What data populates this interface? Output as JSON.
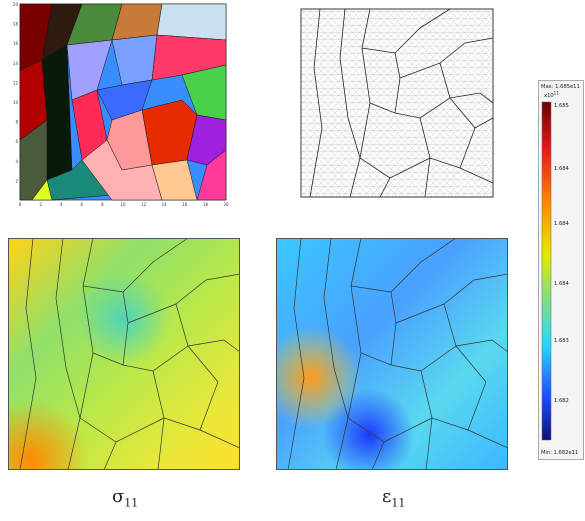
{
  "captions": {
    "sigma": {
      "symbol": "σ",
      "sub": "11"
    },
    "eps": {
      "symbol": "ε",
      "sub": "11"
    }
  },
  "grain_map": {
    "xticks": [
      "0",
      "2",
      "4",
      "6",
      "8",
      "10",
      "12",
      "14",
      "16",
      "18",
      "20"
    ],
    "yticks": [
      "20",
      "18",
      "16",
      "14",
      "12",
      "10",
      "8",
      "6",
      "4",
      "2"
    ]
  },
  "colorbar": {
    "max_label": "Max: 1.685e11",
    "exponent_label": "x10",
    "exponent_power": "11",
    "ticks": [
      "1.685",
      "1.684",
      "1.684",
      "1.684",
      "1.683",
      "1.682"
    ],
    "min_label": "Min: 1.682e11",
    "colors": [
      "#6e0000",
      "#e41a1a",
      "#ff8a00",
      "#e8e800",
      "#7fe07f",
      "#2ad4ff",
      "#1a4fff",
      "#10107a"
    ]
  }
}
